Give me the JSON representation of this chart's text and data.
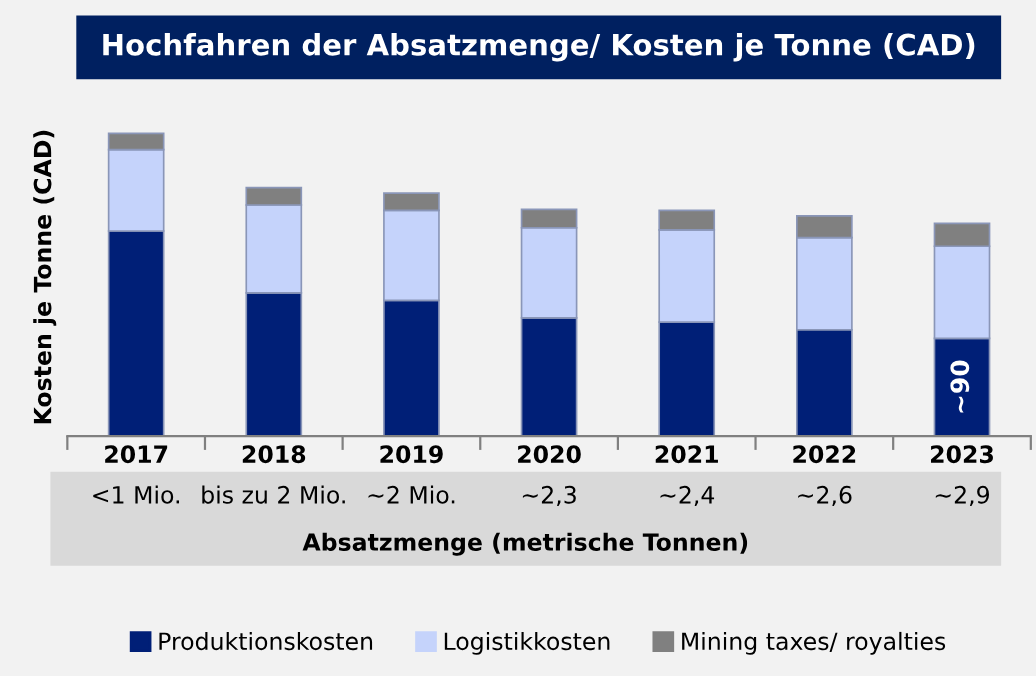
{
  "chart_data": {
    "type": "bar",
    "stacked": true,
    "title": "Hochfahren der Absatzmenge/ Kosten je Tonne (CAD)",
    "ylabel": "Kosten je Tonne (CAD)",
    "xlabel": "Absatzmenge (metrische Tonnen)",
    "categories": [
      "2017\n<1 Mio.",
      "2018\nbis zu 2 Mio.",
      "2019\n~2 Mio.",
      "2020\n~2,3",
      "2021\n~2,4",
      "2022\n~2,6",
      "2023\n~2,9"
    ],
    "series": [
      {
        "name": "Produktionskosten",
        "color": "#001f77",
        "values": [
          189,
          132,
          125,
          109,
          105,
          98,
          90
        ],
        "value_labels": [
          null,
          null,
          null,
          null,
          null,
          null,
          "~90"
        ]
      },
      {
        "name": "Logistikkosten",
        "color": "#c5d3fb",
        "values": [
          75,
          81,
          83,
          83,
          85,
          85,
          85
        ]
      },
      {
        "name": "Mining taxes/ royalties",
        "color": "#808080",
        "values": [
          15,
          16,
          16,
          17,
          18,
          20,
          21
        ]
      }
    ],
    "legend": "bottom",
    "grid": false
  }
}
